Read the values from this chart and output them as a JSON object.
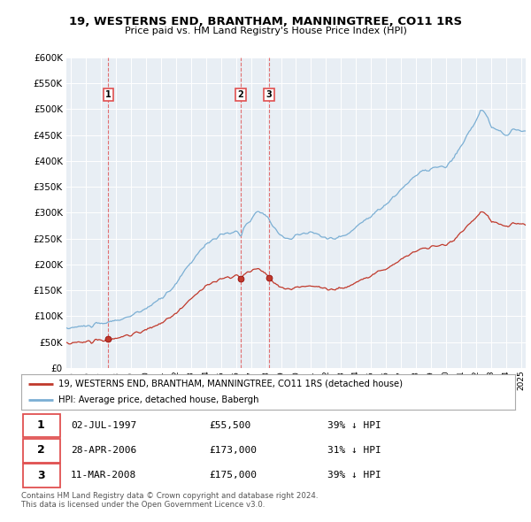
{
  "title": "19, WESTERNS END, BRANTHAM, MANNINGTREE, CO11 1RS",
  "subtitle": "Price paid vs. HM Land Registry's House Price Index (HPI)",
  "sale_dates_num": [
    1997.496,
    2006.32,
    2008.19
  ],
  "sale_prices": [
    55500,
    173000,
    175000
  ],
  "sale_labels": [
    "1",
    "2",
    "3"
  ],
  "hpi_color": "#7bafd4",
  "price_color": "#c0392b",
  "vline_color": "#e05050",
  "legend_entries": [
    "19, WESTERNS END, BRANTHAM, MANNINGTREE, CO11 1RS (detached house)",
    "HPI: Average price, detached house, Babergh"
  ],
  "table_rows": [
    [
      "1",
      "02-JUL-1997",
      "£55,500",
      "39% ↓ HPI"
    ],
    [
      "2",
      "28-APR-2006",
      "£173,000",
      "31% ↓ HPI"
    ],
    [
      "3",
      "11-MAR-2008",
      "£175,000",
      "39% ↓ HPI"
    ]
  ],
  "footer": "Contains HM Land Registry data © Crown copyright and database right 2024.\nThis data is licensed under the Open Government Licence v3.0.",
  "ylim": [
    0,
    600000
  ],
  "yticks": [
    0,
    50000,
    100000,
    150000,
    200000,
    250000,
    300000,
    350000,
    400000,
    450000,
    500000,
    550000,
    600000
  ],
  "xlim_start": 1994.7,
  "xlim_end": 2025.3,
  "background_color": "#ffffff",
  "plot_bg_color": "#e8eef4"
}
